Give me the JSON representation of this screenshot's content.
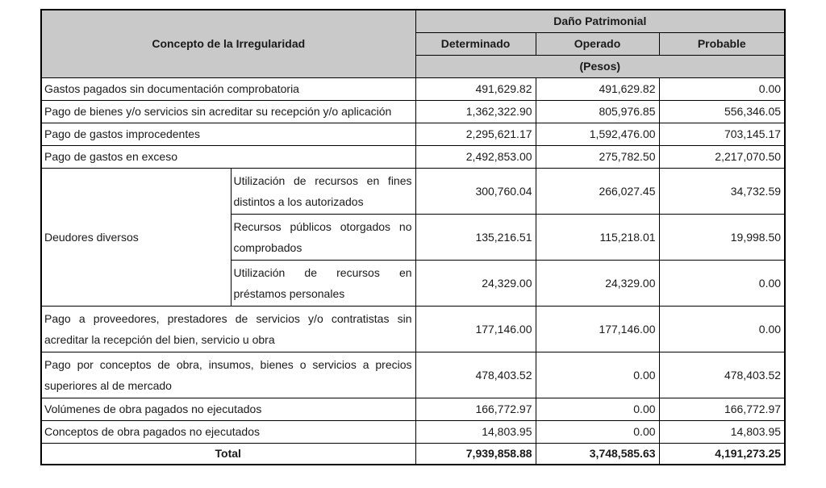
{
  "colors": {
    "header_bg": "#c9c9c9",
    "border": "#000000",
    "text": "#1a1a1a",
    "page_bg": "#ffffff"
  },
  "table": {
    "header": {
      "concepto": "Concepto de la Irregularidad",
      "dano_patrimonial": "Daño Patrimonial",
      "determinado": "Determinado",
      "operado": "Operado",
      "probable": "Probable",
      "pesos": "(Pesos)"
    },
    "rows_top": [
      {
        "concepto": "Gastos pagados sin documentación comprobatoria",
        "determinado": "491,629.82",
        "operado": "491,629.82",
        "probable": "0.00"
      },
      {
        "concepto": "Pago de bienes y/o servicios sin acreditar su recepción y/o aplicación",
        "determinado": "1,362,322.90",
        "operado": "805,976.85",
        "probable": "556,346.05"
      },
      {
        "concepto": "Pago de gastos improcedentes",
        "determinado": "2,295,621.17",
        "operado": "1,592,476.00",
        "probable": "703,145.17"
      },
      {
        "concepto": "Pago de gastos en exceso",
        "determinado": "2,492,853.00",
        "operado": "275,782.50",
        "probable": "2,217,070.50"
      }
    ],
    "deudores": {
      "label": "Deudores diversos",
      "subrows": [
        {
          "concepto": "Utilización de recursos en fines distintos a los autorizados",
          "determinado": "300,760.04",
          "operado": "266,027.45",
          "probable": "34,732.59"
        },
        {
          "concepto": "Recursos públicos otorgados no comprobados",
          "determinado": "135,216.51",
          "operado": "115,218.01",
          "probable": "19,998.50"
        },
        {
          "concepto": "Utilización de recursos en préstamos personales",
          "determinado": "24,329.00",
          "operado": "24,329.00",
          "probable": "0.00"
        }
      ]
    },
    "rows_bottom": [
      {
        "concepto": "Pago a proveedores, prestadores de servicios y/o contratistas sin acreditar la recepción del bien, servicio u obra",
        "determinado": "177,146.00",
        "operado": "177,146.00",
        "probable": "0.00",
        "tall": true
      },
      {
        "concepto": "Pago por conceptos de obra, insumos, bienes o servicios a precios superiores al de mercado",
        "determinado": "478,403.52",
        "operado": "0.00",
        "probable": "478,403.52",
        "tall": true
      },
      {
        "concepto": "Volúmenes de obra pagados no ejecutados",
        "determinado": "166,772.97",
        "operado": "0.00",
        "probable": "166,772.97",
        "tall": false
      },
      {
        "concepto": "Conceptos de obra pagados no ejecutados",
        "determinado": "14,803.95",
        "operado": "0.00",
        "probable": "14,803.95",
        "tall": false
      }
    ],
    "total": {
      "label": "Total",
      "determinado": "7,939,858.88",
      "operado": "3,748,585.63",
      "probable": "4,191,273.25"
    }
  }
}
